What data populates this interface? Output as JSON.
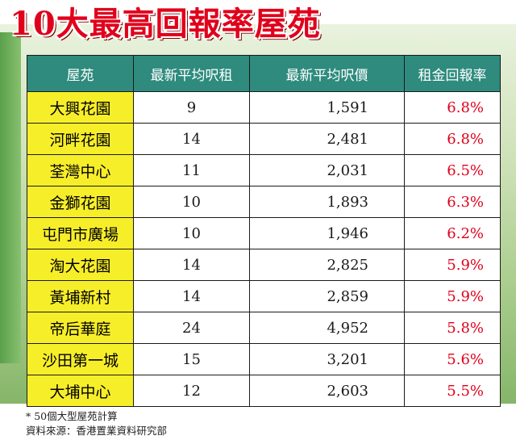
{
  "title": "10大最高回報率屋苑",
  "table": {
    "headers": [
      "屋苑",
      "最新平均呎租",
      "最新平均呎價",
      "租金回報率"
    ],
    "rows": [
      {
        "estate": "大興花園",
        "rent": "9",
        "price": "1,591",
        "yield": "6.8%"
      },
      {
        "estate": "河畔花園",
        "rent": "14",
        "price": "2,481",
        "yield": "6.8%"
      },
      {
        "estate": "荃灣中心",
        "rent": "11",
        "price": "2,031",
        "yield": "6.5%"
      },
      {
        "estate": "金獅花園",
        "rent": "10",
        "price": "1,893",
        "yield": "6.3%"
      },
      {
        "estate": "屯門市廣場",
        "rent": "10",
        "price": "1,946",
        "yield": "6.2%"
      },
      {
        "estate": "淘大花園",
        "rent": "14",
        "price": "2,825",
        "yield": "5.9%"
      },
      {
        "estate": "黃埔新村",
        "rent": "14",
        "price": "2,859",
        "yield": "5.9%"
      },
      {
        "estate": "帝后華庭",
        "rent": "24",
        "price": "4,952",
        "yield": "5.8%"
      },
      {
        "estate": "沙田第一城",
        "rent": "15",
        "price": "3,201",
        "yield": "5.6%"
      },
      {
        "estate": "大埔中心",
        "rent": "12",
        "price": "2,603",
        "yield": "5.5%"
      }
    ]
  },
  "notes": {
    "line1": "* 50個大型屋苑計算",
    "line2": "資料來源：香港置業資料研究部"
  },
  "colors": {
    "title": "#e0001b",
    "header_bg": "#2e8b7e",
    "estate_bg": "#f7ee2a",
    "yield_text": "#e0001b"
  }
}
